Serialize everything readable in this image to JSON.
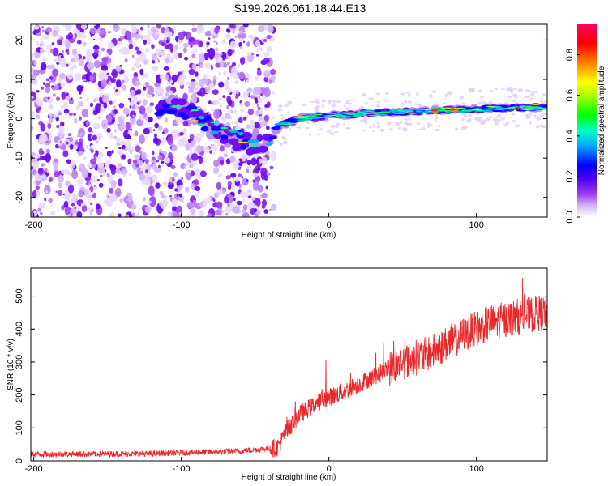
{
  "title": "S199.2026.061.18.44.E13",
  "chart_data": [
    {
      "type": "heatmap",
      "title": "S199.2026.061.18.44.E13",
      "xlabel": "Height of straight line (km)",
      "ylabel": "Frequency (Hz)",
      "xlim": [
        -202,
        148
      ],
      "ylim": [
        -25,
        24
      ],
      "xticks": [
        -200,
        -100,
        0,
        100
      ],
      "yticks": [
        -20,
        -10,
        0,
        10,
        20
      ],
      "colorbar": {
        "label": "Normalized spectral amplitude",
        "range": [
          0,
          0.95
        ],
        "ticks": [
          "0.0",
          "0.2",
          "0.4",
          "0.6",
          "0.8"
        ],
        "tick_values": [
          0.0,
          0.2,
          0.4,
          0.6,
          0.8
        ],
        "colormap": [
          "#ffffff",
          "#d9b8f5",
          "#9a3ef0",
          "#5a00f0",
          "#0000ff",
          "#00bfff",
          "#00ff66",
          "#aaff00",
          "#ffff00",
          "#ff8800",
          "#ff0000",
          "#ff0066"
        ]
      },
      "ridge": {
        "description_points": [
          {
            "x": -110,
            "y": 4
          },
          {
            "x": -95,
            "y": 2
          },
          {
            "x": -80,
            "y": -2
          },
          {
            "x": -65,
            "y": -5
          },
          {
            "x": -50,
            "y": -7
          },
          {
            "x": -40,
            "y": -6.5
          },
          {
            "x": -35,
            "y": -2
          },
          {
            "x": -20,
            "y": 0
          },
          {
            "x": 0,
            "y": 0.8
          },
          {
            "x": 50,
            "y": 1.8
          },
          {
            "x": 100,
            "y": 2.5
          },
          {
            "x": 148,
            "y": 3
          }
        ]
      }
    },
    {
      "type": "line",
      "xlabel": "Height of straight line (km)",
      "ylabel": "SNR (10 * v/v)",
      "xlim": [
        -202,
        148
      ],
      "ylim": [
        0,
        585
      ],
      "xticks": [
        -200,
        -100,
        0,
        100
      ],
      "yticks": [
        0,
        100,
        200,
        300,
        400,
        500
      ],
      "color": "#e8292c",
      "trend": {
        "x": [
          -202,
          -120,
          -60,
          -35,
          -28,
          -20,
          -5,
          10,
          30,
          50,
          70,
          90,
          110,
          130,
          148
        ],
        "y": [
          20,
          22,
          30,
          40,
          95,
          140,
          185,
          210,
          255,
          300,
          330,
          380,
          420,
          440,
          450
        ]
      }
    }
  ]
}
